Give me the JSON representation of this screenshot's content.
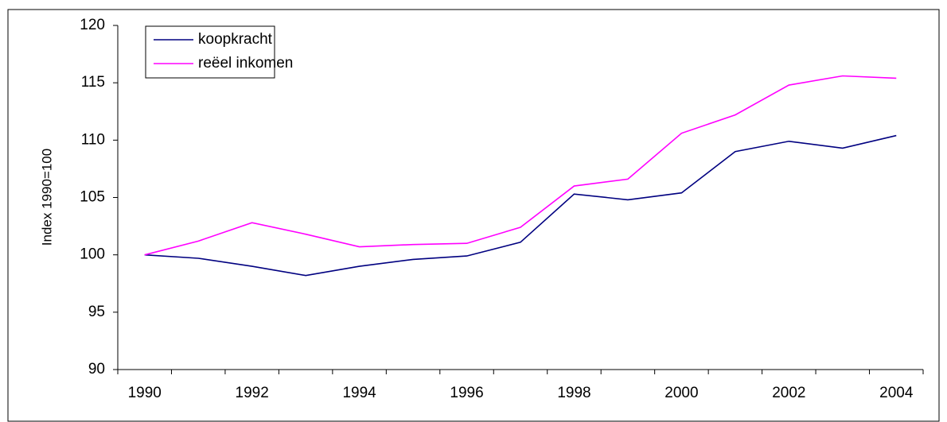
{
  "chart_data": {
    "type": "line",
    "y_label": "Index 1990=100",
    "categories": [
      "1990",
      null,
      "1992",
      null,
      "1994",
      null,
      "1996",
      null,
      "1998",
      null,
      "2000",
      null,
      "2002",
      null,
      "2004"
    ],
    "series": [
      {
        "name": "koopkracht",
        "color": "#000080",
        "values": [
          100,
          99.7,
          99.0,
          98.2,
          99.0,
          99.6,
          99.9,
          101.1,
          105.3,
          104.8,
          105.4,
          109.0,
          109.9,
          109.3,
          110.4
        ]
      },
      {
        "name": "reëel inkomen",
        "color": "#ff00ff",
        "values": [
          100,
          101.2,
          102.8,
          101.8,
          100.7,
          100.9,
          101.0,
          102.4,
          106.0,
          106.6,
          110.6,
          112.2,
          114.8,
          115.6,
          115.4
        ]
      }
    ],
    "ylim": [
      90,
      120
    ],
    "yticks": [
      90,
      95,
      100,
      105,
      110,
      115,
      120
    ],
    "legend": "top-left"
  }
}
